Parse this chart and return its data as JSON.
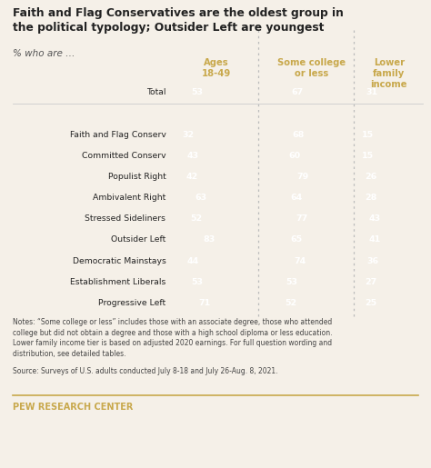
{
  "title": "Faith and Flag Conservatives are the oldest group in\nthe political typology; Outsider Left are youngest",
  "subtitle": "% who are …",
  "col_headers": [
    "Ages\n18-49",
    "Some college\nor less",
    "Lower\nfamily\nincome"
  ],
  "groups": [
    "Total",
    "",
    "Faith and Flag Conserv",
    "Committed Conserv",
    "Populist Right",
    "Ambivalent Right",
    "Stressed Sideliners",
    "Outsider Left",
    "Democratic Mainstays",
    "Establishment Liberals",
    "Progressive Left"
  ],
  "dot_colors": [
    "none",
    "none",
    "#8B1A1A",
    "#C0392B",
    "#E8836A",
    "#F0ADA8",
    "#8FAF7E",
    "#A8C8D8",
    "#5580B0",
    "#2E4F8C",
    "#1E3A7A"
  ],
  "col1": [
    53,
    null,
    32,
    43,
    42,
    63,
    52,
    83,
    44,
    53,
    71
  ],
  "col2": [
    67,
    null,
    68,
    60,
    79,
    64,
    77,
    65,
    74,
    53,
    52
  ],
  "col3": [
    31,
    null,
    15,
    15,
    26,
    28,
    43,
    41,
    36,
    27,
    25
  ],
  "bar_color": "#C8A84B",
  "text_color": "#222222",
  "label_color": "#C8A84B",
  "background_color": "#F5F0E8",
  "separator_color": "#BBBBBB",
  "notes_line1": "Notes: “Some college or less” includes those with an associate degree, those who attended",
  "notes_line2": "college but did not obtain a degree and those with a high school diploma or less education.",
  "notes_line3": "Lower family income tier is based on adjusted 2020 earnings. For full question wording and",
  "notes_line4": "distribution, see detailed tables.",
  "source": "Source: Surveys of U.S. adults conducted July 8-18 and July 26-Aug. 8, 2021.",
  "footer": "PEW RESEARCH CENTER",
  "footer_color": "#C8A84B",
  "bar_max_val": 100
}
